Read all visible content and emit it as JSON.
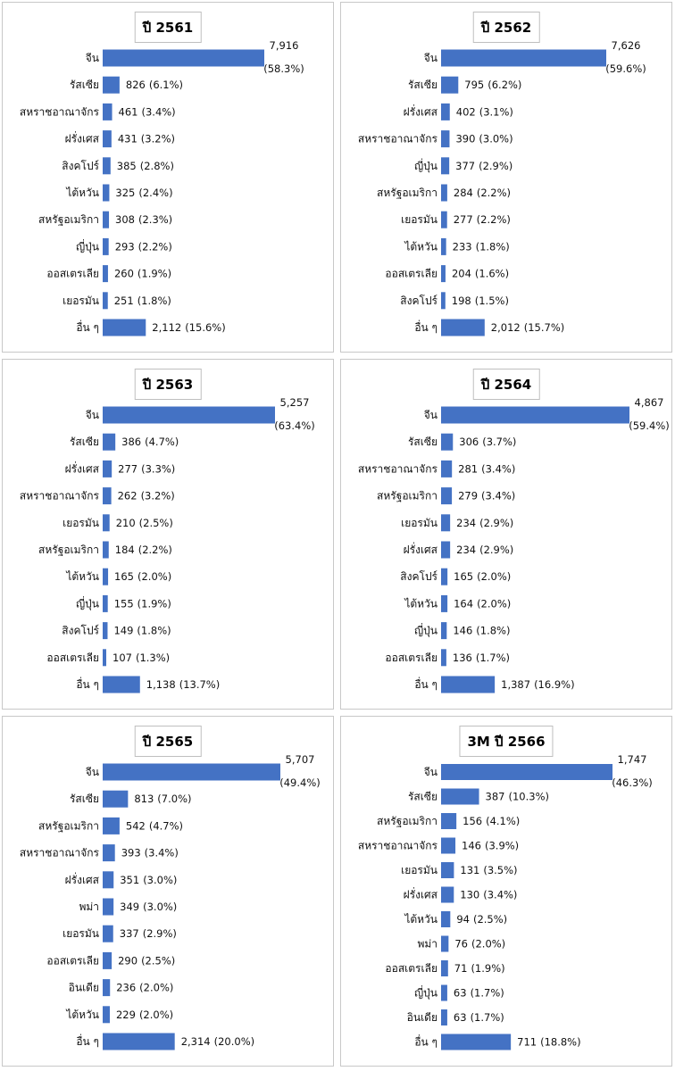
{
  "chart_data": [
    {
      "type": "bar",
      "orientation": "horizontal",
      "title": "ปี 2561",
      "categories": [
        "จีน",
        "รัสเซีย",
        "สหราชอาณาจักร",
        "ฝรั่งเศส",
        "สิงคโปร์",
        "ไต้หวัน",
        "สหรัฐอเมริกา",
        "ญี่ปุ่น",
        "ออสเตรเลีย",
        "เยอรมัน",
        "อื่น ๆ"
      ],
      "values": [
        7916,
        826,
        461,
        431,
        385,
        325,
        308,
        293,
        260,
        251,
        2112
      ],
      "value_labels": [
        "7,916",
        "826",
        "461",
        "431",
        "385",
        "325",
        "308",
        "293",
        "260",
        "251",
        "2,112"
      ],
      "percent_labels": [
        "(58.3%)",
        "(6.1%)",
        "(3.4%)",
        "(3.2%)",
        "(2.8%)",
        "(2.4%)",
        "(2.3%)",
        "(2.2%)",
        "(1.9%)",
        "(1.8%)",
        "(15.6%)"
      ],
      "color": "#4472c4"
    },
    {
      "type": "bar",
      "orientation": "horizontal",
      "title": "ปี 2562",
      "categories": [
        "จีน",
        "รัสเซีย",
        "ฝรั่งเศส",
        "สหราชอาณาจักร",
        "ญี่ปุ่น",
        "สหรัฐอเมริกา",
        "เยอรมัน",
        "ไต้หวัน",
        "ออสเตรเลีย",
        "สิงคโปร์",
        "อื่น ๆ"
      ],
      "values": [
        7626,
        795,
        402,
        390,
        377,
        284,
        277,
        233,
        204,
        198,
        2012
      ],
      "value_labels": [
        "7,626",
        "795",
        "402",
        "390",
        "377",
        "284",
        "277",
        "233",
        "204",
        "198",
        "2,012"
      ],
      "percent_labels": [
        "(59.6%)",
        "(6.2%)",
        "(3.1%)",
        "(3.0%)",
        "(2.9%)",
        "(2.2%)",
        "(2.2%)",
        "(1.8%)",
        "(1.6%)",
        "(1.5%)",
        "(15.7%)"
      ],
      "color": "#4472c4"
    },
    {
      "type": "bar",
      "orientation": "horizontal",
      "title": "ปี 2563",
      "categories": [
        "จีน",
        "รัสเซีย",
        "ฝรั่งเศส",
        "สหราชอาณาจักร",
        "เยอรมัน",
        "สหรัฐอเมริกา",
        "ไต้หวัน",
        "ญี่ปุ่น",
        "สิงคโปร์",
        "ออสเตรเลีย",
        "อื่น ๆ"
      ],
      "values": [
        5257,
        386,
        277,
        262,
        210,
        184,
        165,
        155,
        149,
        107,
        1138
      ],
      "value_labels": [
        "5,257",
        "386",
        "277",
        "262",
        "210",
        "184",
        "165",
        "155",
        "149",
        "107",
        "1,138"
      ],
      "percent_labels": [
        "(63.4%)",
        "(4.7%)",
        "(3.3%)",
        "(3.2%)",
        "(2.5%)",
        "(2.2%)",
        "(2.0%)",
        "(1.9%)",
        "(1.8%)",
        "(1.3%)",
        "(13.7%)"
      ],
      "color": "#4472c4"
    },
    {
      "type": "bar",
      "orientation": "horizontal",
      "title": "ปี 2564",
      "categories": [
        "จีน",
        "รัสเซีย",
        "สหราชอาณาจักร",
        "สหรัฐอเมริกา",
        "เยอรมัน",
        "ฝรั่งเศส",
        "สิงคโปร์",
        "ไต้หวัน",
        "ญี่ปุ่น",
        "ออสเตรเลีย",
        "อื่น ๆ"
      ],
      "values": [
        4867,
        306,
        281,
        279,
        234,
        234,
        165,
        164,
        146,
        136,
        1387
      ],
      "value_labels": [
        "4,867",
        "306",
        "281",
        "279",
        "234",
        "234",
        "165",
        "164",
        "146",
        "136",
        "1,387"
      ],
      "percent_labels": [
        "(59.4%)",
        "(3.7%)",
        "(3.4%)",
        "(3.4%)",
        "(2.9%)",
        "(2.9%)",
        "(2.0%)",
        "(2.0%)",
        "(1.8%)",
        "(1.7%)",
        "(16.9%)"
      ],
      "color": "#4472c4"
    },
    {
      "type": "bar",
      "orientation": "horizontal",
      "title": "ปี 2565",
      "categories": [
        "จีน",
        "รัสเซีย",
        "สหรัฐอเมริกา",
        "สหราชอาณาจักร",
        "ฝรั่งเศส",
        "พม่า",
        "เยอรมัน",
        "ออสเตรเลีย",
        "อินเดีย",
        "ไต้หวัน",
        "อื่น ๆ"
      ],
      "values": [
        5707,
        813,
        542,
        393,
        351,
        349,
        337,
        290,
        236,
        229,
        2314
      ],
      "value_labels": [
        "5,707",
        "813",
        "542",
        "393",
        "351",
        "349",
        "337",
        "290",
        "236",
        "229",
        "2,314"
      ],
      "percent_labels": [
        "(49.4%)",
        "(7.0%)",
        "(4.7%)",
        "(3.4%)",
        "(3.0%)",
        "(3.0%)",
        "(2.9%)",
        "(2.5%)",
        "(2.0%)",
        "(2.0%)",
        "(20.0%)"
      ],
      "color": "#4472c4"
    },
    {
      "type": "bar",
      "orientation": "horizontal",
      "title": "3M ปี 2566",
      "categories": [
        "จีน",
        "รัสเซีย",
        "สหรัฐอเมริกา",
        "สหราชอาณาจักร",
        "เยอรมัน",
        "ฝรั่งเศส",
        "ไต้หวัน",
        "พม่า",
        "ออสเตรเลีย",
        "ญี่ปุ่น",
        "อินเดีย",
        "อื่น ๆ"
      ],
      "values": [
        1747,
        387,
        156,
        146,
        131,
        130,
        94,
        76,
        71,
        63,
        63,
        711
      ],
      "value_labels": [
        "1,747",
        "387",
        "156",
        "146",
        "131",
        "130",
        "94",
        "76",
        "71",
        "63",
        "63",
        "711"
      ],
      "percent_labels": [
        "(46.3%)",
        "(10.3%)",
        "(4.1%)",
        "(3.9%)",
        "(3.5%)",
        "(3.4%)",
        "(2.5%)",
        "(2.0%)",
        "(1.9%)",
        "(1.7%)",
        "(1.7%)",
        "(18.8%)"
      ],
      "color": "#4472c4"
    }
  ]
}
